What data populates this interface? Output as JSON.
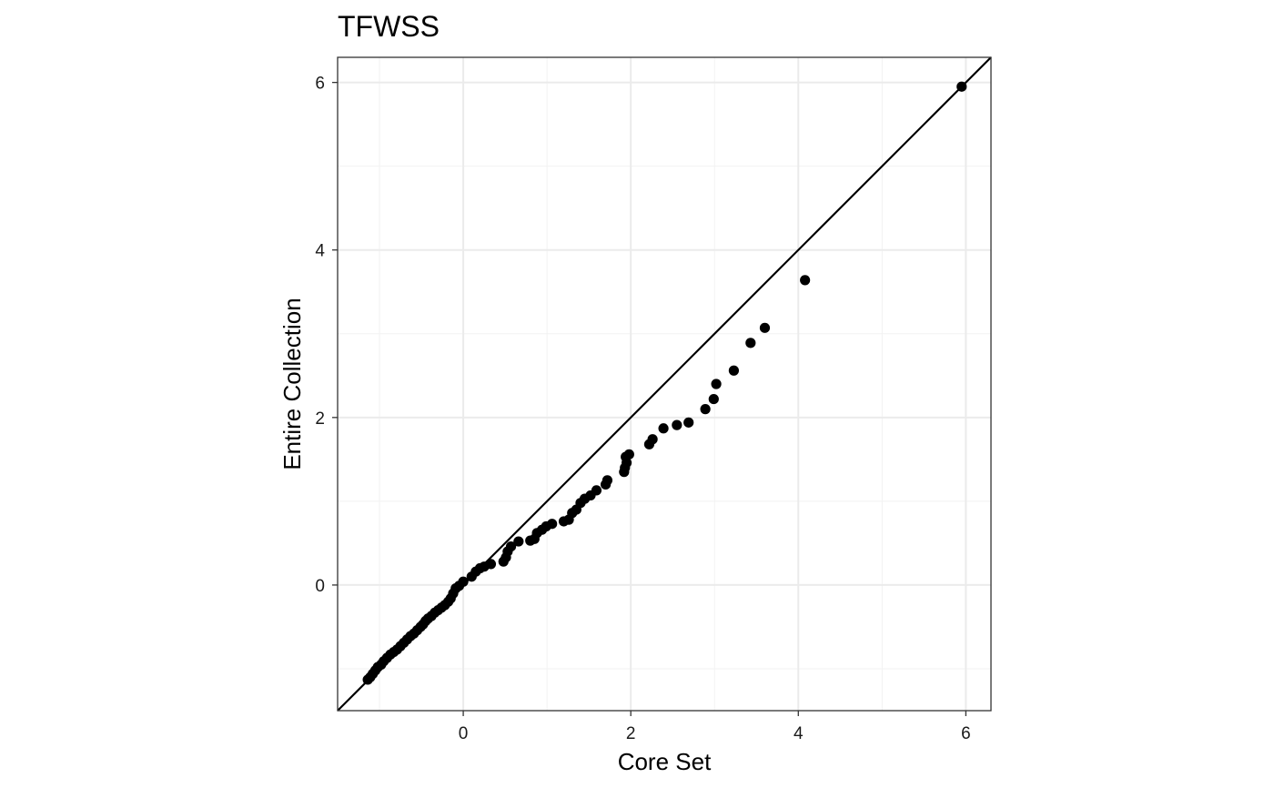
{
  "chart_data": {
    "type": "scatter",
    "title": "TFWSS",
    "xlabel": "Core Set",
    "ylabel": "Entire Collection",
    "xlim": [
      -1.5,
      6.3
    ],
    "ylim": [
      -1.5,
      6.3
    ],
    "x_ticks": [
      0,
      2,
      4,
      6
    ],
    "y_ticks": [
      0,
      2,
      4,
      6
    ],
    "x_tick_labels": [
      "0",
      "2",
      "4",
      "6"
    ],
    "y_tick_labels": [
      "0",
      "2",
      "4",
      "6"
    ],
    "grid": true,
    "reference_line": {
      "slope": 1,
      "intercept": 0
    },
    "series": [
      {
        "points": [
          [
            -1.14,
            -1.13
          ],
          [
            -1.11,
            -1.1
          ],
          [
            -1.08,
            -1.06
          ],
          [
            -1.05,
            -1.02
          ],
          [
            -1.02,
            -0.98
          ],
          [
            -0.98,
            -0.95
          ],
          [
            -0.95,
            -0.91
          ],
          [
            -0.91,
            -0.87
          ],
          [
            -0.87,
            -0.83
          ],
          [
            -0.83,
            -0.8
          ],
          [
            -0.79,
            -0.77
          ],
          [
            -0.75,
            -0.73
          ],
          [
            -0.71,
            -0.69
          ],
          [
            -0.67,
            -0.65
          ],
          [
            -0.63,
            -0.61
          ],
          [
            -0.59,
            -0.58
          ],
          [
            -0.55,
            -0.54
          ],
          [
            -0.51,
            -0.5
          ],
          [
            -0.48,
            -0.47
          ],
          [
            -0.45,
            -0.43
          ],
          [
            -0.42,
            -0.4
          ],
          [
            -0.38,
            -0.37
          ],
          [
            -0.34,
            -0.33
          ],
          [
            -0.3,
            -0.3
          ],
          [
            -0.26,
            -0.27
          ],
          [
            -0.22,
            -0.24
          ],
          [
            -0.18,
            -0.2
          ],
          [
            -0.15,
            -0.16
          ],
          [
            -0.12,
            -0.1
          ],
          [
            -0.09,
            -0.04
          ],
          [
            -0.05,
            -0.01
          ],
          [
            0.0,
            0.04
          ],
          [
            0.1,
            0.1
          ],
          [
            0.15,
            0.16
          ],
          [
            0.2,
            0.2
          ],
          [
            0.25,
            0.22
          ],
          [
            0.33,
            0.25
          ],
          [
            0.48,
            0.28
          ],
          [
            0.51,
            0.33
          ],
          [
            0.53,
            0.4
          ],
          [
            0.57,
            0.46
          ],
          [
            0.66,
            0.52
          ],
          [
            0.8,
            0.53
          ],
          [
            0.85,
            0.55
          ],
          [
            0.88,
            0.62
          ],
          [
            0.94,
            0.66
          ],
          [
            0.99,
            0.7
          ],
          [
            1.06,
            0.73
          ],
          [
            1.2,
            0.76
          ],
          [
            1.26,
            0.78
          ],
          [
            1.3,
            0.86
          ],
          [
            1.35,
            0.9
          ],
          [
            1.4,
            0.98
          ],
          [
            1.45,
            1.03
          ],
          [
            1.52,
            1.07
          ],
          [
            1.59,
            1.13
          ],
          [
            1.7,
            1.2
          ],
          [
            1.72,
            1.25
          ],
          [
            1.92,
            1.35
          ],
          [
            1.93,
            1.4
          ],
          [
            1.95,
            1.46
          ],
          [
            1.94,
            1.53
          ],
          [
            1.98,
            1.56
          ],
          [
            2.22,
            1.68
          ],
          [
            2.26,
            1.74
          ],
          [
            2.39,
            1.87
          ],
          [
            2.55,
            1.91
          ],
          [
            2.69,
            1.94
          ],
          [
            2.89,
            2.1
          ],
          [
            2.99,
            2.22
          ],
          [
            3.02,
            2.4
          ],
          [
            3.23,
            2.56
          ],
          [
            3.43,
            2.89
          ],
          [
            3.6,
            3.07
          ],
          [
            4.08,
            3.64
          ],
          [
            5.95,
            5.95
          ]
        ]
      }
    ]
  }
}
